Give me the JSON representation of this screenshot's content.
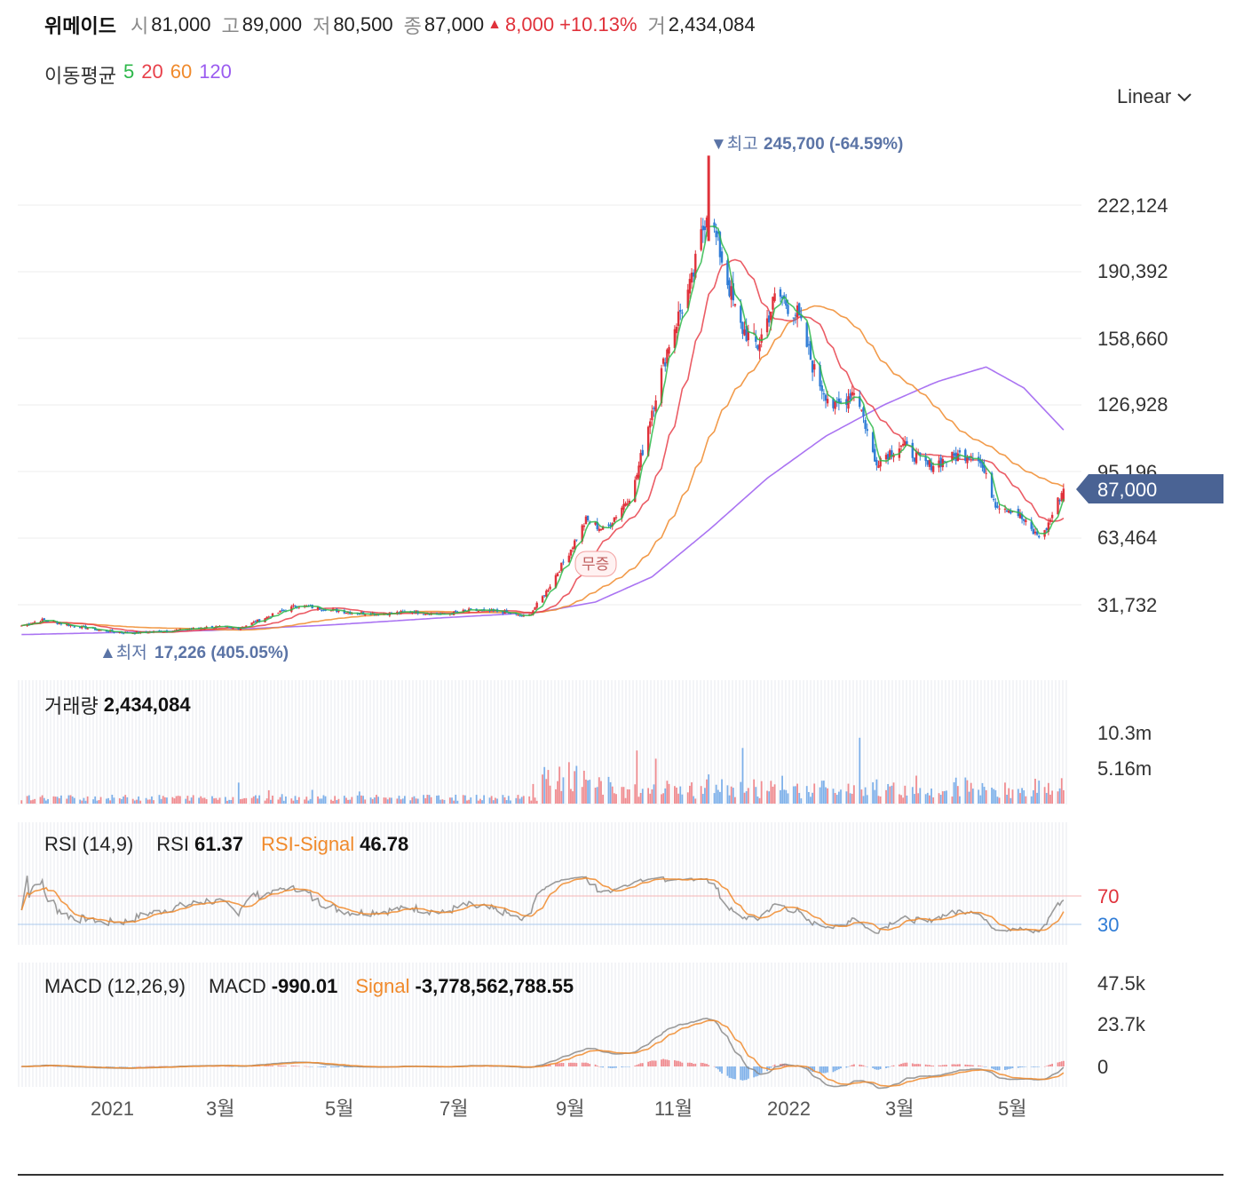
{
  "header": {
    "name": "위메이드",
    "open_label": "시",
    "open": "81,000",
    "high_label": "고",
    "high": "89,000",
    "low_label": "저",
    "low": "80,500",
    "close_label": "종",
    "close": "87,000",
    "change_arrow": "▲",
    "change": "8,000",
    "change_pct": "+10.13%",
    "volume_label": "거",
    "volume": "2,434,084"
  },
  "moving_average": {
    "label": "이동평균",
    "periods": [
      {
        "value": "5",
        "color": "#2db84a"
      },
      {
        "value": "20",
        "color": "#e8404a"
      },
      {
        "value": "60",
        "color": "#f08a2c"
      },
      {
        "value": "120",
        "color": "#9b5cf0"
      }
    ]
  },
  "scale_selector": {
    "label": "Linear",
    "icon": "chevron-down-icon"
  },
  "colors": {
    "up": "#e0323b",
    "down": "#2f7cd6",
    "current_price_bg": "#4a6394",
    "annotation": "#5b74a6"
  },
  "chart_data": [
    {
      "type": "candlestick",
      "title": "",
      "y_ticks": [
        "222,124",
        "190,392",
        "158,660",
        "126,928",
        "95,196",
        "63,464",
        "31,732"
      ],
      "y_tick_values": [
        222124,
        190392,
        158660,
        126928,
        95196,
        63464,
        31732
      ],
      "x_ticks": [
        "2021",
        "3월",
        "5월",
        "7월",
        "9월",
        "11월",
        "2022",
        "3월",
        "5월"
      ],
      "current_price": "87,000",
      "high_marker": {
        "label": "▼최고",
        "value": "245,700 (-64.59%)",
        "price": 245700
      },
      "low_marker": {
        "label": "▲최저",
        "value": "17,226 (405.05%)",
        "price": 17226
      },
      "event_marker": "무증",
      "close_series": [
        {
          "date": "2020-11-20",
          "close": 21800
        },
        {
          "date": "2020-12-01",
          "close": 24500
        },
        {
          "date": "2020-12-15",
          "close": 22000
        },
        {
          "date": "2021-01-01",
          "close": 19500
        },
        {
          "date": "2021-01-15",
          "close": 18200
        },
        {
          "date": "2021-02-01",
          "close": 19000
        },
        {
          "date": "2021-02-15",
          "close": 20000
        },
        {
          "date": "2021-03-01",
          "close": 21200
        },
        {
          "date": "2021-03-15",
          "close": 20500
        },
        {
          "date": "2021-04-01",
          "close": 26500
        },
        {
          "date": "2021-04-15",
          "close": 31500
        },
        {
          "date": "2021-05-01",
          "close": 29500
        },
        {
          "date": "2021-05-15",
          "close": 27800
        },
        {
          "date": "2021-06-01",
          "close": 27500
        },
        {
          "date": "2021-06-15",
          "close": 28500
        },
        {
          "date": "2021-07-01",
          "close": 27000
        },
        {
          "date": "2021-07-15",
          "close": 29000
        },
        {
          "date": "2021-08-01",
          "close": 28500
        },
        {
          "date": "2021-08-15",
          "close": 25500
        },
        {
          "date": "2021-08-25",
          "close": 38000
        },
        {
          "date": "2021-09-05",
          "close": 55000
        },
        {
          "date": "2021-09-15",
          "close": 72000
        },
        {
          "date": "2021-09-25",
          "close": 67000
        },
        {
          "date": "2021-10-10",
          "close": 86000
        },
        {
          "date": "2021-10-20",
          "close": 125000
        },
        {
          "date": "2021-10-30",
          "close": 160000
        },
        {
          "date": "2021-11-10",
          "close": 185000
        },
        {
          "date": "2021-11-18",
          "close": 220000
        },
        {
          "date": "2021-11-25",
          "close": 200000
        },
        {
          "date": "2021-12-05",
          "close": 165000
        },
        {
          "date": "2021-12-15",
          "close": 155000
        },
        {
          "date": "2021-12-25",
          "close": 180000
        },
        {
          "date": "2022-01-05",
          "close": 170000
        },
        {
          "date": "2022-01-15",
          "close": 140000
        },
        {
          "date": "2022-01-25",
          "close": 125000
        },
        {
          "date": "2022-02-05",
          "close": 135000
        },
        {
          "date": "2022-02-15",
          "close": 100000
        },
        {
          "date": "2022-03-01",
          "close": 108000
        },
        {
          "date": "2022-03-15",
          "close": 98000
        },
        {
          "date": "2022-04-01",
          "close": 103000
        },
        {
          "date": "2022-04-10",
          "close": 104000
        },
        {
          "date": "2022-04-20",
          "close": 80000
        },
        {
          "date": "2022-05-01",
          "close": 76000
        },
        {
          "date": "2022-05-10",
          "close": 66000
        },
        {
          "date": "2022-05-15",
          "close": 64000
        },
        {
          "date": "2022-05-22",
          "close": 79000
        },
        {
          "date": "2022-05-26",
          "close": 87000
        }
      ],
      "ma120_series": [
        {
          "date": "2020-11-20",
          "value": 17500
        },
        {
          "date": "2021-03-01",
          "value": 19500
        },
        {
          "date": "2021-05-01",
          "value": 22000
        },
        {
          "date": "2021-07-01",
          "value": 25500
        },
        {
          "date": "2021-08-20",
          "value": 28000
        },
        {
          "date": "2021-09-20",
          "value": 33000
        },
        {
          "date": "2021-10-20",
          "value": 45000
        },
        {
          "date": "2021-11-20",
          "value": 68000
        },
        {
          "date": "2021-12-20",
          "value": 92000
        },
        {
          "date": "2022-01-20",
          "value": 112000
        },
        {
          "date": "2022-02-20",
          "value": 127000
        },
        {
          "date": "2022-03-20",
          "value": 138000
        },
        {
          "date": "2022-04-15",
          "value": 145000
        },
        {
          "date": "2022-05-05",
          "value": 135000
        },
        {
          "date": "2022-05-26",
          "value": 115000
        }
      ]
    },
    {
      "type": "bar",
      "title": "거래량",
      "current_value": "2,434,084",
      "y_ticks": [
        "10.3m",
        "5.16m"
      ],
      "y_tick_values": [
        10300000,
        5160000
      ]
    },
    {
      "type": "line",
      "title": "RSI (14,9)",
      "series": [
        {
          "name": "RSI",
          "current": "61.37"
        },
        {
          "name": "RSI-Signal",
          "current": "46.78"
        }
      ],
      "y_ticks": [
        "70",
        "30"
      ],
      "levels": [
        70,
        30
      ]
    },
    {
      "type": "line",
      "title": "MACD (12,26,9)",
      "series": [
        {
          "name": "MACD",
          "current": "-990.01"
        },
        {
          "name": "Signal",
          "current": "-3,778,562,788.55"
        }
      ],
      "y_ticks": [
        "47.5k",
        "23.7k",
        "0"
      ],
      "y_tick_values": [
        47500,
        23700,
        0
      ]
    }
  ]
}
